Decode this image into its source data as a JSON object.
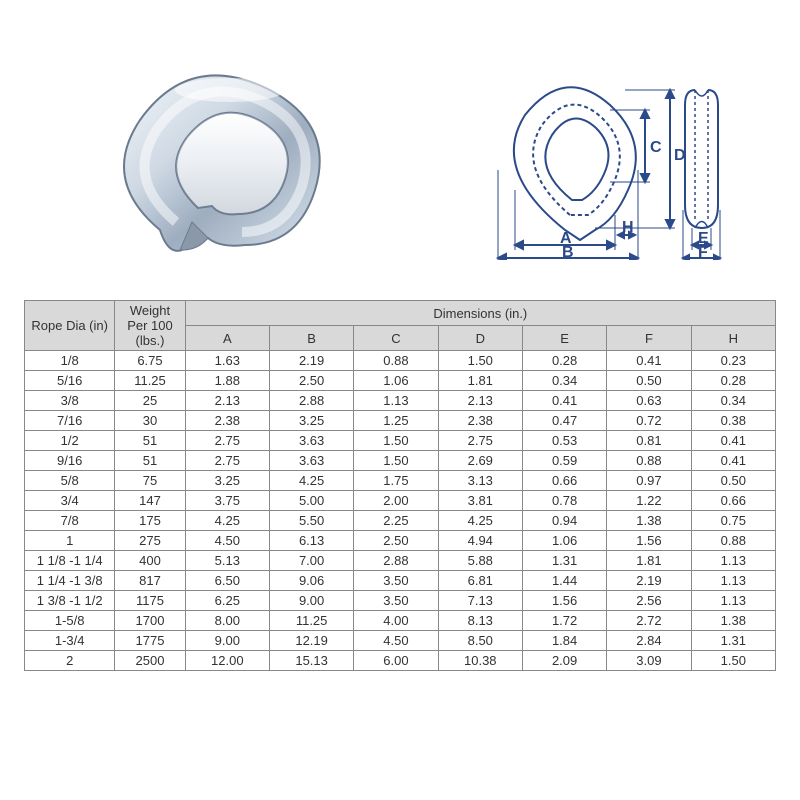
{
  "table": {
    "header_rope": "Rope Dia (in)",
    "header_weight": "Weight Per 100 (lbs.)",
    "header_dimensions": "Dimensions (in.)",
    "dim_cols": [
      "A",
      "B",
      "C",
      "D",
      "E",
      "F",
      "H"
    ],
    "rows": [
      {
        "rope": "1/8",
        "weight": "6.75",
        "d": [
          "1.63",
          "2.19",
          "0.88",
          "1.50",
          "0.28",
          "0.41",
          "0.23"
        ]
      },
      {
        "rope": "5/16",
        "weight": "11.25",
        "d": [
          "1.88",
          "2.50",
          "1.06",
          "1.81",
          "0.34",
          "0.50",
          "0.28"
        ]
      },
      {
        "rope": "3/8",
        "weight": "25",
        "d": [
          "2.13",
          "2.88",
          "1.13",
          "2.13",
          "0.41",
          "0.63",
          "0.34"
        ]
      },
      {
        "rope": "7/16",
        "weight": "30",
        "d": [
          "2.38",
          "3.25",
          "1.25",
          "2.38",
          "0.47",
          "0.72",
          "0.38"
        ]
      },
      {
        "rope": "1/2",
        "weight": "51",
        "d": [
          "2.75",
          "3.63",
          "1.50",
          "2.75",
          "0.53",
          "0.81",
          "0.41"
        ]
      },
      {
        "rope": "9/16",
        "weight": "51",
        "d": [
          "2.75",
          "3.63",
          "1.50",
          "2.69",
          "0.59",
          "0.88",
          "0.41"
        ]
      },
      {
        "rope": "5/8",
        "weight": "75",
        "d": [
          "3.25",
          "4.25",
          "1.75",
          "3.13",
          "0.66",
          "0.97",
          "0.50"
        ]
      },
      {
        "rope": "3/4",
        "weight": "147",
        "d": [
          "3.75",
          "5.00",
          "2.00",
          "3.81",
          "0.78",
          "1.22",
          "0.66"
        ]
      },
      {
        "rope": "7/8",
        "weight": "175",
        "d": [
          "4.25",
          "5.50",
          "2.25",
          "4.25",
          "0.94",
          "1.38",
          "0.75"
        ]
      },
      {
        "rope": "1",
        "weight": "275",
        "d": [
          "4.50",
          "6.13",
          "2.50",
          "4.94",
          "1.06",
          "1.56",
          "0.88"
        ]
      },
      {
        "rope": "1 1/8 -1 1/4",
        "weight": "400",
        "d": [
          "5.13",
          "7.00",
          "2.88",
          "5.88",
          "1.31",
          "1.81",
          "1.13"
        ]
      },
      {
        "rope": "1 1/4 -1 3/8",
        "weight": "817",
        "d": [
          "6.50",
          "9.06",
          "3.50",
          "6.81",
          "1.44",
          "2.19",
          "1.13"
        ]
      },
      {
        "rope": "1 3/8 -1 1/2",
        "weight": "1175",
        "d": [
          "6.25",
          "9.00",
          "3.50",
          "7.13",
          "1.56",
          "2.56",
          "1.13"
        ]
      },
      {
        "rope": "1-5/8",
        "weight": "1700",
        "d": [
          "8.00",
          "11.25",
          "4.00",
          "8.13",
          "1.72",
          "2.72",
          "1.38"
        ]
      },
      {
        "rope": "1-3/4",
        "weight": "1775",
        "d": [
          "9.00",
          "12.19",
          "4.50",
          "8.50",
          "1.84",
          "2.84",
          "1.31"
        ]
      },
      {
        "rope": "2",
        "weight": "2500",
        "d": [
          "12.00",
          "15.13",
          "6.00",
          "10.38",
          "2.09",
          "3.09",
          "1.50"
        ]
      }
    ]
  },
  "diagram_labels": {
    "A": "A",
    "B": "B",
    "C": "C",
    "D": "D",
    "E": "E",
    "F": "F",
    "H": "H"
  },
  "colors": {
    "header_bg": "#d9d9d9",
    "border": "#888888",
    "diagram_stroke": "#2b4a8a",
    "metal_light": "#e8eef5",
    "metal_mid": "#b8c6d6",
    "metal_dark": "#6b7b8f"
  }
}
